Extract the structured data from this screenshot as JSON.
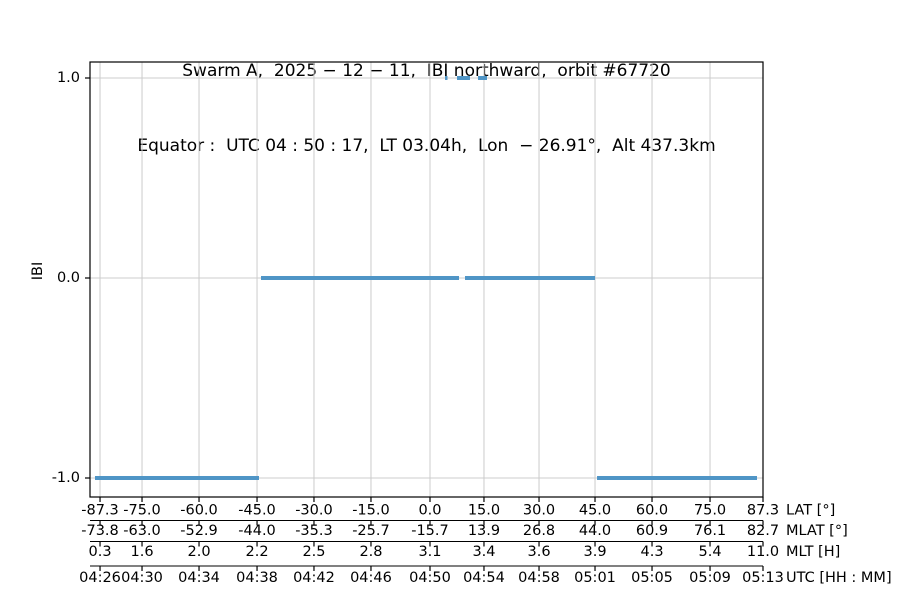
{
  "chart_data": {
    "type": "line",
    "title": "Swarm A,  2025 − 12 − 11,  IBI northward,  orbit #67720",
    "subtitle": "Equator :  UTC 04 : 50 : 17,  LT 03.04h,  Lon  − 26.91°,  Alt 437.3km",
    "ylabel": "IBI",
    "ylim": [
      -1.1,
      1.08
    ],
    "grid": true,
    "colors": {
      "line": "#4f95c6",
      "grid": "#cccccc",
      "spine": "#000000",
      "background": "#ffffff"
    },
    "y_ticks": [
      {
        "value": 1.0,
        "label": "1.0"
      },
      {
        "value": 0.0,
        "label": "0.0"
      },
      {
        "value": -1.0,
        "label": "-1.0"
      }
    ],
    "x_rows": [
      {
        "key": "lat",
        "label": "LAT [°]"
      },
      {
        "key": "mlat",
        "label": "MLAT [°]"
      },
      {
        "key": "mlt",
        "label": "MLT [H]"
      },
      {
        "key": "utc",
        "label": "UTC [HH : MM]"
      }
    ],
    "x_ticks": [
      {
        "pos": 0.0149,
        "lat": "-87.3",
        "mlat": "-73.8",
        "mlt": "0.3",
        "utc": "04:26"
      },
      {
        "pos": 0.0773,
        "lat": "-75.0",
        "mlat": "-63.0",
        "mlt": "1.6",
        "utc": "04:30"
      },
      {
        "pos": 0.162,
        "lat": "-60.0",
        "mlat": "-52.9",
        "mlt": "2.0",
        "utc": "04:34"
      },
      {
        "pos": 0.2482,
        "lat": "-45.0",
        "mlat": "-44.0",
        "mlt": "2.2",
        "utc": "04:38"
      },
      {
        "pos": 0.3328,
        "lat": "-30.0",
        "mlat": "-35.3",
        "mlt": "2.5",
        "utc": "04:42"
      },
      {
        "pos": 0.4175,
        "lat": "-15.0",
        "mlat": "-25.7",
        "mlt": "2.8",
        "utc": "04:46"
      },
      {
        "pos": 0.5052,
        "lat": "0.0",
        "mlat": "-15.7",
        "mlt": "3.1",
        "utc": "04:50"
      },
      {
        "pos": 0.5854,
        "lat": "15.0",
        "mlat": "13.9",
        "mlt": "3.4",
        "utc": "04:54"
      },
      {
        "pos": 0.6672,
        "lat": "30.0",
        "mlat": "26.8",
        "mlt": "3.6",
        "utc": "04:58"
      },
      {
        "pos": 0.7504,
        "lat": "45.0",
        "mlat": "44.0",
        "mlt": "3.9",
        "utc": "05:01"
      },
      {
        "pos": 0.8351,
        "lat": "60.0",
        "mlat": "60.9",
        "mlt": "4.3",
        "utc": "05:05"
      },
      {
        "pos": 0.9213,
        "lat": "75.0",
        "mlat": "76.1",
        "mlt": "5.4",
        "utc": "05:09"
      },
      {
        "pos": 1.0,
        "lat": "87.3",
        "mlat": "82.7",
        "mlt": "11.0",
        "utc": "05:13"
      }
    ],
    "series": [
      {
        "name": "IBI",
        "segments": [
          {
            "value": -1,
            "x0": 0.0074,
            "x1": 0.2511
          },
          {
            "value": 0,
            "x0": 0.2541,
            "x1": 0.5483
          },
          {
            "value": 0,
            "x0": 0.5572,
            "x1": 0.7504
          },
          {
            "value": 1,
            "x0": 0.5275,
            "x1": 0.5312
          },
          {
            "value": 1,
            "x0": 0.5453,
            "x1": 0.5646
          },
          {
            "value": 1,
            "x0": 0.5766,
            "x1": 0.5899
          },
          {
            "value": -1,
            "x0": 0.7534,
            "x1": 0.9911
          }
        ]
      }
    ]
  }
}
